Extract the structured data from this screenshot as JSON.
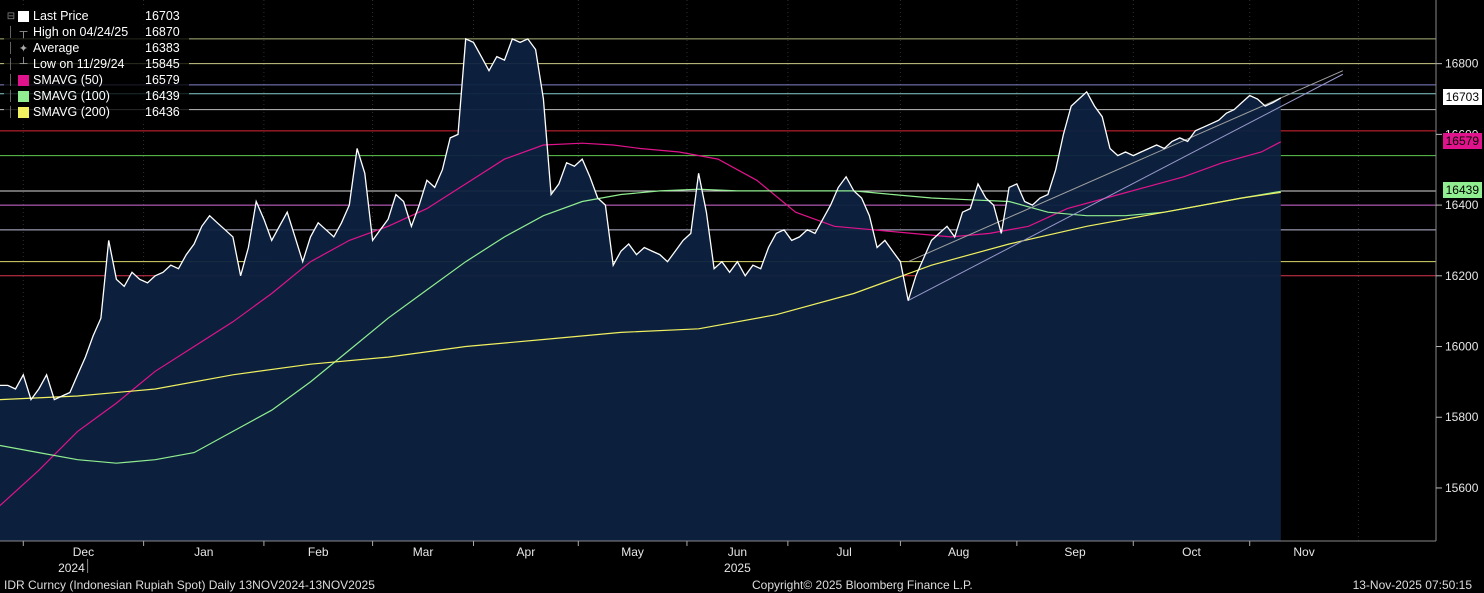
{
  "chart_data": {
    "type": "line",
    "ylim": [
      15450,
      16980
    ],
    "yticks": [
      15600,
      15800,
      16000,
      16200,
      16400,
      16600,
      16800
    ],
    "months": [
      {
        "label": "Dec",
        "year": "2024"
      },
      {
        "label": "Jan",
        "year": ""
      },
      {
        "label": "Feb",
        "year": ""
      },
      {
        "label": "Mar",
        "year": ""
      },
      {
        "label": "Apr",
        "year": ""
      },
      {
        "label": "May",
        "year": ""
      },
      {
        "label": "Jun",
        "year": "2025"
      },
      {
        "label": "Jul",
        "year": ""
      },
      {
        "label": "Aug",
        "year": ""
      },
      {
        "label": "Sep",
        "year": ""
      },
      {
        "label": "Oct",
        "year": ""
      },
      {
        "label": "Nov",
        "year": ""
      }
    ],
    "legend": [
      {
        "label": "Last Price",
        "value": "16703",
        "color": "#ffffff",
        "kind": "swatch"
      },
      {
        "label": "High on 04/24/25",
        "value": "16870",
        "color": "#aaaaaa",
        "kind": "high"
      },
      {
        "label": "Average",
        "value": "16383",
        "color": "#aaaaaa",
        "kind": "avg"
      },
      {
        "label": "Low on 11/29/24",
        "value": "15845",
        "color": "#aaaaaa",
        "kind": "low"
      },
      {
        "label": "SMAVG (50)",
        "value": "16579",
        "color": "#e0138c",
        "kind": "swatch"
      },
      {
        "label": "SMAVG (100)",
        "value": "16439",
        "color": "#90ee90",
        "kind": "swatch"
      },
      {
        "label": "SMAVG (200)",
        "value": "16436",
        "color": "#f0f060",
        "kind": "swatch"
      }
    ],
    "axis_tags": [
      {
        "text": "16703",
        "value": 16703,
        "bg": "#ffffff"
      },
      {
        "text": "16579",
        "value": 16579,
        "bg": "#e0138c"
      },
      {
        "text": "16439",
        "value": 16439,
        "bg": "#90ee90"
      }
    ],
    "hlines": [
      {
        "value": 16870,
        "color": "#c8d890"
      },
      {
        "value": 16800,
        "color": "#f0f0a0"
      },
      {
        "value": 16740,
        "color": "#9c9cf0"
      },
      {
        "value": 16715,
        "color": "#a0f0f0"
      },
      {
        "value": 16670,
        "color": "#e0e0e0"
      },
      {
        "value": 16610,
        "color": "#ff3040"
      },
      {
        "value": 16540,
        "color": "#70ee60"
      },
      {
        "value": 16440,
        "color": "#ffffff"
      },
      {
        "value": 16400,
        "color": "#ff80ff"
      },
      {
        "value": 16330,
        "color": "#e0e0ff"
      },
      {
        "value": 16240,
        "color": "#ffff80"
      },
      {
        "value": 16200,
        "color": "#ff4060"
      }
    ],
    "series": [
      {
        "name": "Last Price",
        "color": "#ffffff",
        "points": [
          [
            0,
            15890
          ],
          [
            2,
            15890
          ],
          [
            4,
            15880
          ],
          [
            6,
            15920
          ],
          [
            8,
            15850
          ],
          [
            10,
            15880
          ],
          [
            12,
            15920
          ],
          [
            14,
            15850
          ],
          [
            16,
            15860
          ],
          [
            18,
            15870
          ],
          [
            20,
            15920
          ],
          [
            22,
            15970
          ],
          [
            24,
            16030
          ],
          [
            26,
            16080
          ],
          [
            28,
            16300
          ],
          [
            30,
            16190
          ],
          [
            32,
            16170
          ],
          [
            34,
            16210
          ],
          [
            36,
            16190
          ],
          [
            38,
            16180
          ],
          [
            40,
            16200
          ],
          [
            42,
            16210
          ],
          [
            44,
            16230
          ],
          [
            46,
            16220
          ],
          [
            48,
            16260
          ],
          [
            50,
            16290
          ],
          [
            52,
            16340
          ],
          [
            54,
            16370
          ],
          [
            56,
            16350
          ],
          [
            58,
            16330
          ],
          [
            60,
            16310
          ],
          [
            62,
            16200
          ],
          [
            64,
            16280
          ],
          [
            66,
            16410
          ],
          [
            68,
            16360
          ],
          [
            70,
            16300
          ],
          [
            72,
            16340
          ],
          [
            74,
            16380
          ],
          [
            76,
            16310
          ],
          [
            78,
            16240
          ],
          [
            80,
            16310
          ],
          [
            82,
            16350
          ],
          [
            84,
            16330
          ],
          [
            86,
            16310
          ],
          [
            88,
            16350
          ],
          [
            90,
            16400
          ],
          [
            92,
            16560
          ],
          [
            94,
            16490
          ],
          [
            96,
            16300
          ],
          [
            98,
            16330
          ],
          [
            100,
            16360
          ],
          [
            102,
            16430
          ],
          [
            104,
            16410
          ],
          [
            106,
            16340
          ],
          [
            108,
            16400
          ],
          [
            110,
            16470
          ],
          [
            112,
            16450
          ],
          [
            114,
            16500
          ],
          [
            116,
            16590
          ],
          [
            118,
            16600
          ],
          [
            120,
            16870
          ],
          [
            122,
            16860
          ],
          [
            124,
            16820
          ],
          [
            126,
            16780
          ],
          [
            128,
            16820
          ],
          [
            130,
            16810
          ],
          [
            132,
            16870
          ],
          [
            134,
            16860
          ],
          [
            136,
            16870
          ],
          [
            138,
            16840
          ],
          [
            140,
            16700
          ],
          [
            142,
            16430
          ],
          [
            144,
            16460
          ],
          [
            146,
            16520
          ],
          [
            148,
            16510
          ],
          [
            150,
            16530
          ],
          [
            152,
            16480
          ],
          [
            154,
            16420
          ],
          [
            156,
            16400
          ],
          [
            158,
            16230
          ],
          [
            160,
            16270
          ],
          [
            162,
            16290
          ],
          [
            164,
            16260
          ],
          [
            166,
            16280
          ],
          [
            168,
            16270
          ],
          [
            170,
            16260
          ],
          [
            172,
            16240
          ],
          [
            174,
            16270
          ],
          [
            176,
            16300
          ],
          [
            178,
            16320
          ],
          [
            180,
            16490
          ],
          [
            182,
            16380
          ],
          [
            184,
            16220
          ],
          [
            186,
            16240
          ],
          [
            188,
            16210
          ],
          [
            190,
            16240
          ],
          [
            192,
            16200
          ],
          [
            194,
            16230
          ],
          [
            196,
            16220
          ],
          [
            198,
            16280
          ],
          [
            200,
            16320
          ],
          [
            202,
            16330
          ],
          [
            204,
            16300
          ],
          [
            206,
            16310
          ],
          [
            208,
            16330
          ],
          [
            210,
            16320
          ],
          [
            212,
            16360
          ],
          [
            214,
            16400
          ],
          [
            216,
            16450
          ],
          [
            218,
            16480
          ],
          [
            220,
            16440
          ],
          [
            222,
            16420
          ],
          [
            224,
            16370
          ],
          [
            226,
            16280
          ],
          [
            228,
            16300
          ],
          [
            230,
            16270
          ],
          [
            232,
            16240
          ],
          [
            234,
            16130
          ],
          [
            236,
            16200
          ],
          [
            238,
            16250
          ],
          [
            240,
            16300
          ],
          [
            242,
            16320
          ],
          [
            244,
            16340
          ],
          [
            246,
            16310
          ],
          [
            248,
            16380
          ],
          [
            250,
            16390
          ],
          [
            252,
            16460
          ],
          [
            254,
            16420
          ],
          [
            256,
            16400
          ],
          [
            258,
            16320
          ],
          [
            260,
            16450
          ],
          [
            262,
            16460
          ],
          [
            264,
            16410
          ],
          [
            266,
            16400
          ],
          [
            268,
            16420
          ],
          [
            270,
            16430
          ],
          [
            272,
            16500
          ],
          [
            274,
            16600
          ],
          [
            276,
            16680
          ],
          [
            278,
            16700
          ],
          [
            280,
            16720
          ],
          [
            282,
            16680
          ],
          [
            284,
            16650
          ],
          [
            286,
            16560
          ],
          [
            288,
            16540
          ],
          [
            290,
            16550
          ],
          [
            292,
            16540
          ],
          [
            294,
            16550
          ],
          [
            296,
            16560
          ],
          [
            298,
            16570
          ],
          [
            300,
            16560
          ],
          [
            302,
            16580
          ],
          [
            304,
            16590
          ],
          [
            306,
            16580
          ],
          [
            308,
            16610
          ],
          [
            310,
            16620
          ],
          [
            312,
            16630
          ],
          [
            314,
            16640
          ],
          [
            316,
            16660
          ],
          [
            318,
            16670
          ],
          [
            320,
            16690
          ],
          [
            322,
            16710
          ],
          [
            324,
            16700
          ],
          [
            326,
            16680
          ],
          [
            328,
            16690
          ],
          [
            330,
            16703
          ]
        ]
      },
      {
        "name": "SMAVG (50)",
        "color": "#e0138c",
        "points": [
          [
            0,
            15550
          ],
          [
            10,
            15650
          ],
          [
            20,
            15760
          ],
          [
            30,
            15840
          ],
          [
            40,
            15930
          ],
          [
            50,
            16000
          ],
          [
            60,
            16070
          ],
          [
            70,
            16150
          ],
          [
            80,
            16240
          ],
          [
            90,
            16300
          ],
          [
            100,
            16340
          ],
          [
            110,
            16390
          ],
          [
            120,
            16460
          ],
          [
            130,
            16530
          ],
          [
            140,
            16570
          ],
          [
            150,
            16575
          ],
          [
            158,
            16570
          ],
          [
            165,
            16560
          ],
          [
            175,
            16550
          ],
          [
            185,
            16530
          ],
          [
            195,
            16470
          ],
          [
            205,
            16380
          ],
          [
            215,
            16340
          ],
          [
            225,
            16330
          ],
          [
            235,
            16320
          ],
          [
            245,
            16310
          ],
          [
            255,
            16320
          ],
          [
            265,
            16340
          ],
          [
            275,
            16390
          ],
          [
            285,
            16420
          ],
          [
            295,
            16450
          ],
          [
            305,
            16480
          ],
          [
            315,
            16520
          ],
          [
            325,
            16550
          ],
          [
            330,
            16579
          ]
        ]
      },
      {
        "name": "SMAVG (100)",
        "color": "#90ee90",
        "points": [
          [
            0,
            15720
          ],
          [
            10,
            15700
          ],
          [
            20,
            15680
          ],
          [
            30,
            15670
          ],
          [
            40,
            15680
          ],
          [
            50,
            15700
          ],
          [
            60,
            15760
          ],
          [
            70,
            15820
          ],
          [
            80,
            15900
          ],
          [
            90,
            15990
          ],
          [
            100,
            16080
          ],
          [
            110,
            16160
          ],
          [
            120,
            16240
          ],
          [
            130,
            16310
          ],
          [
            140,
            16370
          ],
          [
            150,
            16410
          ],
          [
            160,
            16430
          ],
          [
            170,
            16440
          ],
          [
            180,
            16445
          ],
          [
            190,
            16440
          ],
          [
            200,
            16440
          ],
          [
            210,
            16440
          ],
          [
            220,
            16440
          ],
          [
            230,
            16430
          ],
          [
            240,
            16420
          ],
          [
            250,
            16415
          ],
          [
            260,
            16410
          ],
          [
            270,
            16380
          ],
          [
            280,
            16370
          ],
          [
            290,
            16370
          ],
          [
            300,
            16380
          ],
          [
            310,
            16400
          ],
          [
            320,
            16420
          ],
          [
            330,
            16439
          ]
        ]
      },
      {
        "name": "SMAVG (200)",
        "color": "#f0f060",
        "points": [
          [
            0,
            15850
          ],
          [
            20,
            15860
          ],
          [
            40,
            15880
          ],
          [
            60,
            15920
          ],
          [
            80,
            15950
          ],
          [
            100,
            15970
          ],
          [
            120,
            16000
          ],
          [
            140,
            16020
          ],
          [
            160,
            16040
          ],
          [
            180,
            16050
          ],
          [
            200,
            16090
          ],
          [
            220,
            16150
          ],
          [
            240,
            16230
          ],
          [
            260,
            16290
          ],
          [
            280,
            16340
          ],
          [
            300,
            16380
          ],
          [
            320,
            16420
          ],
          [
            330,
            16436
          ]
        ]
      }
    ],
    "trendlines": [
      {
        "color": "#9999cc",
        "from": [
          234,
          16130
        ],
        "to": [
          346,
          16770
        ]
      },
      {
        "color": "#a0a0a0",
        "from": [
          234,
          16240
        ],
        "to": [
          346,
          16780
        ]
      }
    ]
  },
  "footer": {
    "left": "IDR Curncy (Indonesian Rupiah Spot) Daily 13NOV2024-13NOV2025",
    "center": "Copyright© 2025 Bloomberg Finance L.P.",
    "right": "13-Nov-2025 07:50:15"
  }
}
